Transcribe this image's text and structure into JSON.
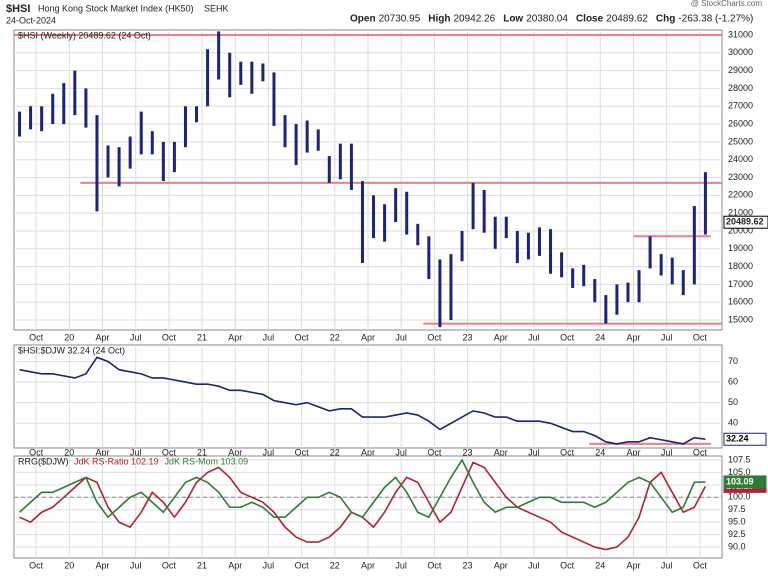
{
  "header": {
    "symbol": "$HSI",
    "name": "Hong Kong Stock Market Index (HK50)",
    "exchange": "SEHK",
    "date": "24-Oct-2024",
    "source": "@ StockCharts.com",
    "stats": [
      {
        "label": "Open",
        "value": "20730.95"
      },
      {
        "label": "High",
        "value": "20942.26"
      },
      {
        "label": "Low",
        "value": "20380.04"
      },
      {
        "label": "Close",
        "value": "20489.62"
      },
      {
        "label": "Chg",
        "value": "-263.38 (-1.27%)"
      }
    ]
  },
  "chart_data": [
    {
      "type": "range-bar",
      "title": "$HSI (Weekly) 20489.62 (24 Oct)",
      "color": "#1a237e",
      "level_color": "#f08080",
      "xlim": [
        "2019-08",
        "2024-11"
      ],
      "xticks": [
        {
          "value": "2019-10",
          "label": "Oct"
        },
        {
          "value": "2020-01",
          "label": "20"
        },
        {
          "value": "2020-04",
          "label": "Apr"
        },
        {
          "value": "2020-07",
          "label": "Jul"
        },
        {
          "value": "2020-10",
          "label": "Oct"
        },
        {
          "value": "2021-01",
          "label": "21"
        },
        {
          "value": "2021-04",
          "label": "Apr"
        },
        {
          "value": "2021-07",
          "label": "Jul"
        },
        {
          "value": "2021-10",
          "label": "Oct"
        },
        {
          "value": "2022-01",
          "label": "22"
        },
        {
          "value": "2022-04",
          "label": "Apr"
        },
        {
          "value": "2022-07",
          "label": "Jul"
        },
        {
          "value": "2022-10",
          "label": "Oct"
        },
        {
          "value": "2023-01",
          "label": "23"
        },
        {
          "value": "2023-04",
          "label": "Apr"
        },
        {
          "value": "2023-07",
          "label": "Jul"
        },
        {
          "value": "2023-10",
          "label": "Oct"
        },
        {
          "value": "2024-01",
          "label": "24"
        },
        {
          "value": "2024-04",
          "label": "Apr"
        },
        {
          "value": "2024-07",
          "label": "Jul"
        },
        {
          "value": "2024-10",
          "label": "Oct"
        }
      ],
      "x": [
        "2019-08",
        "2019-09",
        "2019-10",
        "2019-11",
        "2019-12",
        "2020-01",
        "2020-02",
        "2020-03",
        "2020-04",
        "2020-05",
        "2020-06",
        "2020-07",
        "2020-08",
        "2020-09",
        "2020-10",
        "2020-11",
        "2020-12",
        "2021-01",
        "2021-02",
        "2021-03",
        "2021-04",
        "2021-05",
        "2021-06",
        "2021-07",
        "2021-08",
        "2021-09",
        "2021-10",
        "2021-11",
        "2021-12",
        "2022-01",
        "2022-02",
        "2022-03",
        "2022-04",
        "2022-05",
        "2022-06",
        "2022-07",
        "2022-08",
        "2022-09",
        "2022-10",
        "2022-11",
        "2022-12",
        "2023-01",
        "2023-02",
        "2023-03",
        "2023-04",
        "2023-05",
        "2023-06",
        "2023-07",
        "2023-08",
        "2023-09",
        "2023-10",
        "2023-11",
        "2023-12",
        "2024-01",
        "2024-02",
        "2024-03",
        "2024-04",
        "2024-05",
        "2024-06",
        "2024-07",
        "2024-08",
        "2024-09",
        "2024-10"
      ],
      "high": [
        26700,
        27000,
        27000,
        27700,
        28300,
        29000,
        28000,
        26500,
        24800,
        24700,
        25300,
        26700,
        25600,
        25000,
        25000,
        27000,
        27000,
        30200,
        31200,
        30000,
        29500,
        29500,
        29400,
        28900,
        26500,
        26000,
        26200,
        25700,
        24200,
        24900,
        24900,
        22800,
        22000,
        21500,
        22400,
        22200,
        20400,
        19700,
        18400,
        18700,
        20000,
        22700,
        22300,
        20800,
        20800,
        20000,
        19900,
        20200,
        20100,
        18800,
        17900,
        18100,
        17300,
        16400,
        17000,
        17100,
        17800,
        19700,
        18700,
        18500,
        17800,
        21400,
        23300
      ],
      "low": [
        25300,
        25700,
        25600,
        26000,
        26000,
        26500,
        25800,
        21100,
        23000,
        22500,
        23500,
        24300,
        24300,
        22800,
        23300,
        24700,
        26100,
        27000,
        28500,
        27500,
        28200,
        27700,
        28400,
        25900,
        24700,
        23700,
        24400,
        24500,
        22700,
        22900,
        22300,
        18200,
        19600,
        19400,
        20500,
        19800,
        19200,
        17300,
        14600,
        15000,
        18300,
        20100,
        19900,
        19000,
        19600,
        18200,
        18400,
        18600,
        17600,
        17400,
        16800,
        16900,
        16000,
        14800,
        15300,
        16000,
        16000,
        17900,
        17500,
        17000,
        16400,
        17000,
        19800
      ],
      "levels": [
        {
          "value": 31000,
          "from": "2019-08",
          "to": "2024-11"
        },
        {
          "value": 22700,
          "from": "2020-02",
          "to": "2024-11"
        },
        {
          "value": 14800,
          "from": "2022-09",
          "to": "2024-11"
        },
        {
          "value": 19700,
          "from": "2024-04",
          "to": "2024-10"
        }
      ],
      "ylim": [
        14440,
        31280
      ],
      "yticks": [
        15000,
        16000,
        17000,
        18000,
        19000,
        20000,
        21000,
        22000,
        23000,
        24000,
        25000,
        26000,
        27000,
        28000,
        29000,
        30000,
        31000
      ],
      "grid": true
    },
    {
      "type": "line",
      "title": "$HSI:$DJW 32.24 (24 Oct)",
      "color": "#1a237e",
      "level_color": "#f08080",
      "values": [
        66,
        65,
        64,
        64,
        63,
        62,
        64,
        72,
        70,
        66,
        65,
        64,
        62,
        62,
        61,
        60,
        59,
        59,
        58,
        56,
        56,
        55,
        54,
        51,
        50,
        49,
        50,
        48,
        46,
        47,
        47,
        43,
        43,
        43,
        44,
        45,
        44,
        41,
        37,
        40,
        43,
        46,
        45,
        43,
        43,
        41,
        41,
        41,
        40,
        38,
        36,
        36,
        34,
        31,
        30,
        31,
        31,
        33,
        32,
        31,
        30,
        33,
        32.24
      ],
      "levels": [
        {
          "value": 30,
          "from": "2023-12",
          "to": "2024-10"
        }
      ],
      "ylim": [
        28,
        78
      ],
      "yticks": [
        40,
        50,
        60,
        70
      ],
      "grid": true
    },
    {
      "type": "line",
      "title": "RRG($DJW)",
      "reference": 100,
      "series": [
        {
          "name": "JdK RS-Ratio 102.19",
          "color": "#b22234",
          "values": [
            96,
            95,
            97,
            98,
            100,
            102,
            104,
            103,
            98,
            95,
            94,
            97,
            101,
            99,
            96,
            99,
            103,
            105,
            106,
            104,
            101,
            100,
            99,
            97,
            94,
            92,
            91,
            91,
            92,
            94,
            97,
            96,
            94,
            97,
            101,
            104,
            103,
            99,
            95,
            97,
            102,
            107,
            106,
            103,
            100,
            98,
            97,
            96,
            95,
            93,
            92,
            91,
            90,
            89.5,
            90,
            92,
            96,
            103,
            105,
            101,
            97,
            98,
            102.19
          ]
        },
        {
          "name": "JdK RS-Mom 103.09",
          "color": "#2e7d32",
          "values": [
            97,
            99,
            101,
            101,
            102,
            103,
            104,
            99,
            96,
            98,
            100,
            101,
            99,
            97,
            100,
            103,
            104,
            103,
            101,
            98,
            98,
            99,
            98,
            96,
            96,
            98,
            100,
            100,
            101,
            100,
            97,
            96,
            99,
            102,
            104,
            101,
            97,
            96,
            100,
            104,
            107.5,
            103,
            99,
            97,
            98,
            98,
            99,
            100,
            100,
            99,
            99,
            99,
            98,
            99,
            101,
            103,
            104,
            103,
            100,
            97,
            98,
            103,
            103.09
          ]
        }
      ],
      "ylim": [
        87.8,
        108.3
      ],
      "yticks": [
        {
          "value": 90,
          "label": "90.0"
        },
        92.5,
        {
          "value": 95,
          "label": "95.0"
        },
        97.5,
        {
          "value": 100,
          "label": "100.0"
        },
        102.5,
        {
          "value": 105,
          "label": "105.0"
        },
        107.5
      ],
      "grid": true
    }
  ]
}
